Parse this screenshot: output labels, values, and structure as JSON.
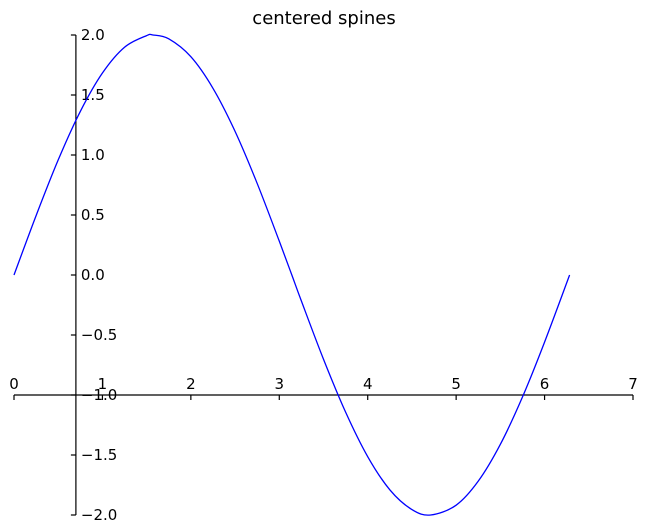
{
  "chart_data": {
    "type": "line",
    "title": "centered spines",
    "xlabel": "",
    "ylabel": "",
    "xlim": [
      0,
      7
    ],
    "ylim": [
      -2.0,
      2.0
    ],
    "grid": false,
    "spines": {
      "x_axis_at_y": -1.0,
      "y_axis_at_x": 0.7
    },
    "x_ticks": [
      0,
      1,
      2,
      3,
      4,
      5,
      6,
      7
    ],
    "x_tick_labels": [
      "0",
      "1",
      "2",
      "3",
      "4",
      "5",
      "6",
      "7"
    ],
    "y_ticks": [
      2.0,
      1.5,
      1.0,
      0.5,
      0.0,
      -0.5,
      -1.0,
      -1.5,
      -2.0
    ],
    "y_tick_labels": [
      "2.0",
      "1.5",
      "1.0",
      "0.5",
      "0.0",
      "−0.5",
      "−1.0",
      "−1.5",
      "−2.0"
    ],
    "series": [
      {
        "color": "#0000ff",
        "x": [
          0.0,
          0.25,
          0.5,
          0.75,
          1.0,
          1.25,
          1.5,
          1.571,
          1.75,
          2.0,
          2.25,
          2.5,
          2.75,
          3.0,
          3.142,
          3.25,
          3.5,
          3.75,
          4.0,
          4.25,
          4.5,
          4.712,
          5.0,
          5.25,
          5.5,
          5.75,
          6.0,
          6.283
        ],
        "y": [
          0.0,
          0.495,
          0.959,
          1.363,
          1.683,
          1.898,
          1.995,
          2.0,
          1.968,
          1.819,
          1.556,
          1.197,
          0.763,
          0.282,
          0.0,
          -0.217,
          -0.702,
          -1.143,
          -1.514,
          -1.79,
          -1.955,
          -2.0,
          -1.918,
          -1.718,
          -1.411,
          -1.017,
          -0.559,
          0.0
        ]
      }
    ]
  }
}
